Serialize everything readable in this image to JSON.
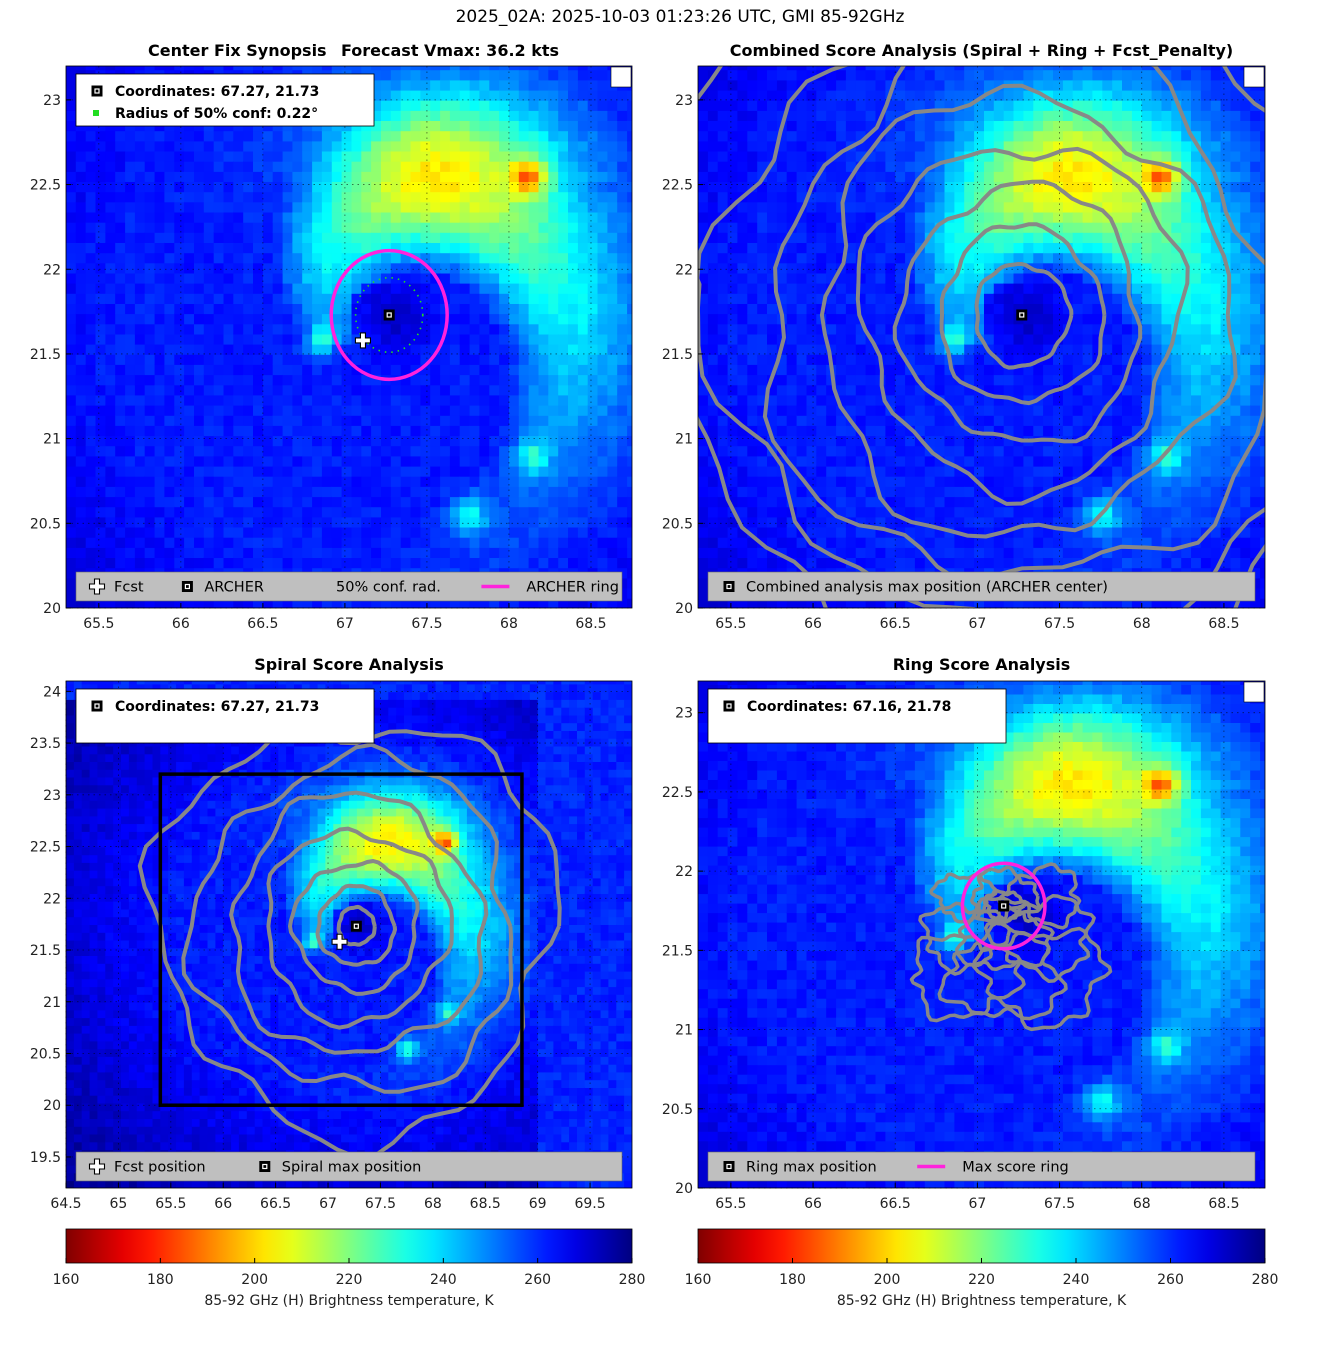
{
  "suptitle": "2025_02A: 2025-10-03 01:23:26 UTC, GMI 85-92GHz",
  "colors": {
    "fcst_marker": "#ffffff",
    "archer_marker": "#000000",
    "conf_dots": "#22dd22",
    "archer_ring": "#ff22dd",
    "contour": "#888888",
    "legend_bg": "#bfbfbf",
    "spiral_box": "#000000"
  },
  "colorbar": {
    "label": "85-92 GHz (H) Brightness temperature, K",
    "range": [
      160,
      280
    ],
    "ticks": [
      "160",
      "180",
      "200",
      "220",
      "240",
      "260",
      "280"
    ],
    "colormap": "jet_reversed"
  },
  "chart_data": [
    {
      "id": "synopsis",
      "type": "heatmap",
      "title": "Center Fix Synopsis",
      "title2": "Forecast Vmax: 36.2 kts",
      "xlim": [
        65.3,
        68.75
      ],
      "ylim": [
        20,
        23.2
      ],
      "xticks": [
        65.5,
        66,
        66.5,
        67,
        67.5,
        68,
        68.5
      ],
      "yticks": [
        20,
        20.5,
        21,
        21.5,
        22,
        22.5,
        23
      ],
      "info_lines": [
        {
          "icon": "square",
          "text": "Coordinates: 67.27, 21.73"
        },
        {
          "icon": "green-dot",
          "text": "Radius of 50% conf: 0.22°"
        }
      ],
      "archer_center": [
        67.27,
        21.73
      ],
      "fcst_position": [
        67.11,
        21.58
      ],
      "ring_radius_deg": 0.38,
      "conf_radius_deg": 0.22,
      "legend": [
        {
          "icon": "fcst",
          "label": "Fcst"
        },
        {
          "icon": "archer",
          "label": "ARCHER"
        },
        {
          "icon": "dots",
          "label": "50% conf. rad."
        },
        {
          "icon": "ring",
          "label": "ARCHER ring"
        }
      ]
    },
    {
      "id": "combined",
      "type": "heatmap",
      "title": "Combined Score Analysis (Spiral + Ring + Fcst_Penalty)",
      "xlim": [
        65.3,
        68.75
      ],
      "ylim": [
        20,
        23.2
      ],
      "xticks": [
        65.5,
        66,
        66.5,
        67,
        67.5,
        68,
        68.5
      ],
      "yticks": [
        20,
        20.5,
        21,
        21.5,
        22,
        22.5,
        23
      ],
      "archer_center": [
        67.27,
        21.73
      ],
      "contour_radii_deg": [
        0.3,
        0.52,
        0.76,
        1.02,
        1.3,
        1.6,
        1.92,
        2.25
      ],
      "legend": [
        {
          "icon": "archer",
          "label": "Combined analysis max position (ARCHER center)"
        }
      ]
    },
    {
      "id": "spiral",
      "type": "heatmap",
      "title": "Spiral Score Analysis",
      "xlim": [
        64.5,
        69.9
      ],
      "ylim": [
        19.2,
        24.1
      ],
      "xticks": [
        64.5,
        65,
        65.5,
        66,
        66.5,
        67,
        67.5,
        68,
        68.5,
        69,
        69.5
      ],
      "yticks": [
        19.5,
        20,
        20.5,
        21,
        21.5,
        22,
        22.5,
        23,
        23.5,
        24
      ],
      "info_lines": [
        {
          "icon": "square",
          "text": "Coordinates: 67.27, 21.73"
        }
      ],
      "archer_center": [
        67.27,
        21.73
      ],
      "fcst_position": [
        67.11,
        21.58
      ],
      "search_box": {
        "lon": [
          65.4,
          68.85
        ],
        "lat": [
          20,
          23.2
        ]
      },
      "contour_radii_deg": [
        0.18,
        0.38,
        0.62,
        0.92,
        1.25,
        1.6,
        2.0
      ],
      "legend": [
        {
          "icon": "fcst",
          "label": "Fcst position"
        },
        {
          "icon": "archer",
          "label": "Spiral max position"
        }
      ]
    },
    {
      "id": "ring",
      "type": "heatmap",
      "title": "Ring Score Analysis",
      "xlim": [
        65.3,
        68.75
      ],
      "ylim": [
        20,
        23.2
      ],
      "xticks": [
        65.5,
        66,
        66.5,
        67,
        67.5,
        68,
        68.5
      ],
      "yticks": [
        20,
        20.5,
        21,
        21.5,
        22,
        22.5,
        23
      ],
      "info_lines": [
        {
          "icon": "square",
          "text": "Coordinates: 67.16, 21.78"
        }
      ],
      "archer_center": [
        67.16,
        21.78
      ],
      "ring_radius_deg": 0.27,
      "legend": [
        {
          "icon": "archer",
          "label": "Ring max position"
        },
        {
          "icon": "ring",
          "label": "Max score ring"
        }
      ]
    }
  ]
}
